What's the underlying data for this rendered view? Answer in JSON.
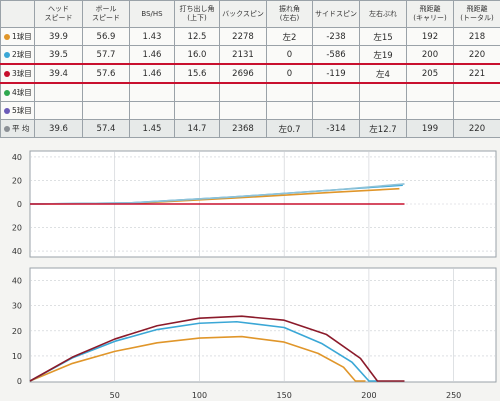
{
  "table": {
    "headers": [
      {
        "l1": "",
        "l2": ""
      },
      {
        "l1": "ヘッド",
        "l2": "スピード"
      },
      {
        "l1": "ボール",
        "l2": "スピード"
      },
      {
        "l1": "BS/HS",
        "l2": ""
      },
      {
        "l1": "打ち出し角",
        "l2": "(上下)"
      },
      {
        "l1": "バックスピン",
        "l2": ""
      },
      {
        "l1": "振れ角",
        "l2": "(左右)"
      },
      {
        "l1": "サイドスピン",
        "l2": ""
      },
      {
        "l1": "左右ぶれ",
        "l2": ""
      },
      {
        "l1": "飛距離",
        "l2": "(キャリー)"
      },
      {
        "l1": "飛距離",
        "l2": "(トータル)"
      }
    ],
    "rows": [
      {
        "label": "1球目",
        "color": "#e0962a",
        "cells": [
          "39.9",
          "56.9",
          "1.43",
          "12.5",
          "2278",
          "左2",
          "-238",
          "左15",
          "192",
          "218"
        ]
      },
      {
        "label": "2球目",
        "color": "#3aa7d6",
        "cells": [
          "39.5",
          "57.7",
          "1.46",
          "16.0",
          "2131",
          "0",
          "-586",
          "左19",
          "200",
          "220"
        ]
      },
      {
        "label": "3球目",
        "color": "#c8102e",
        "cells": [
          "39.4",
          "57.6",
          "1.46",
          "15.6",
          "2696",
          "0",
          "-119",
          "左4",
          "205",
          "221"
        ]
      },
      {
        "label": "4球目",
        "color": "#2fa84f",
        "cells": [
          "",
          "",
          "",
          "",
          "",
          "",
          "",
          "",
          "",
          ""
        ]
      },
      {
        "label": "5球目",
        "color": "#6b5bb8",
        "cells": [
          "",
          "",
          "",
          "",
          "",
          "",
          "",
          "",
          "",
          ""
        ]
      },
      {
        "label": "平 均",
        "color": "#8a8f94",
        "cells": [
          "39.6",
          "57.4",
          "1.45",
          "14.7",
          "2368",
          "左0.7",
          "-314",
          "左12.7",
          "199",
          "220"
        ]
      }
    ]
  },
  "top_chart": {
    "yticks": [
      "40",
      "20",
      "0",
      "20",
      "40"
    ],
    "lines": [
      {
        "color": "#e0962a",
        "points": [
          [
            0,
            0
          ],
          [
            60,
            0.5
          ],
          [
            120,
            5
          ],
          [
            180,
            10
          ],
          [
            218,
            13
          ]
        ]
      },
      {
        "color": "#3aa7d6",
        "points": [
          [
            0,
            0
          ],
          [
            60,
            1
          ],
          [
            120,
            6
          ],
          [
            180,
            12
          ],
          [
            220,
            16
          ]
        ]
      },
      {
        "color": "#8fc2d8",
        "points": [
          [
            0,
            0
          ],
          [
            60,
            1
          ],
          [
            120,
            6
          ],
          [
            180,
            12
          ],
          [
            221,
            17
          ]
        ]
      },
      {
        "color": "#c8102e",
        "points": [
          [
            0,
            0
          ],
          [
            221,
            0
          ]
        ]
      }
    ]
  },
  "bottom_chart": {
    "yticks": [
      "40",
      "30",
      "20",
      "10",
      "0"
    ],
    "xticks": [
      "50",
      "100",
      "150",
      "200",
      "250"
    ],
    "lines": [
      {
        "color": "#e0962a",
        "points": [
          [
            0,
            0
          ],
          [
            25,
            7
          ],
          [
            50,
            11.8
          ],
          [
            75,
            15.2
          ],
          [
            100,
            17.1
          ],
          [
            125,
            17.7
          ],
          [
            150,
            15.5
          ],
          [
            170,
            11
          ],
          [
            185,
            5.5
          ],
          [
            192,
            0
          ],
          [
            198,
            0
          ]
        ]
      },
      {
        "color": "#3aa7d6",
        "points": [
          [
            0,
            0
          ],
          [
            25,
            9.2
          ],
          [
            50,
            15.8
          ],
          [
            75,
            20.5
          ],
          [
            100,
            23
          ],
          [
            122,
            23.6
          ],
          [
            150,
            21.3
          ],
          [
            172,
            15
          ],
          [
            190,
            7.5
          ],
          [
            200,
            0
          ],
          [
            205,
            0
          ]
        ]
      },
      {
        "color": "#8b1a2a",
        "points": [
          [
            0,
            0
          ],
          [
            25,
            9.5
          ],
          [
            50,
            16.7
          ],
          [
            75,
            22
          ],
          [
            100,
            25
          ],
          [
            125,
            25.8
          ],
          [
            150,
            24.2
          ],
          [
            175,
            18.5
          ],
          [
            195,
            9
          ],
          [
            205,
            0
          ],
          [
            221,
            0
          ]
        ]
      }
    ]
  }
}
